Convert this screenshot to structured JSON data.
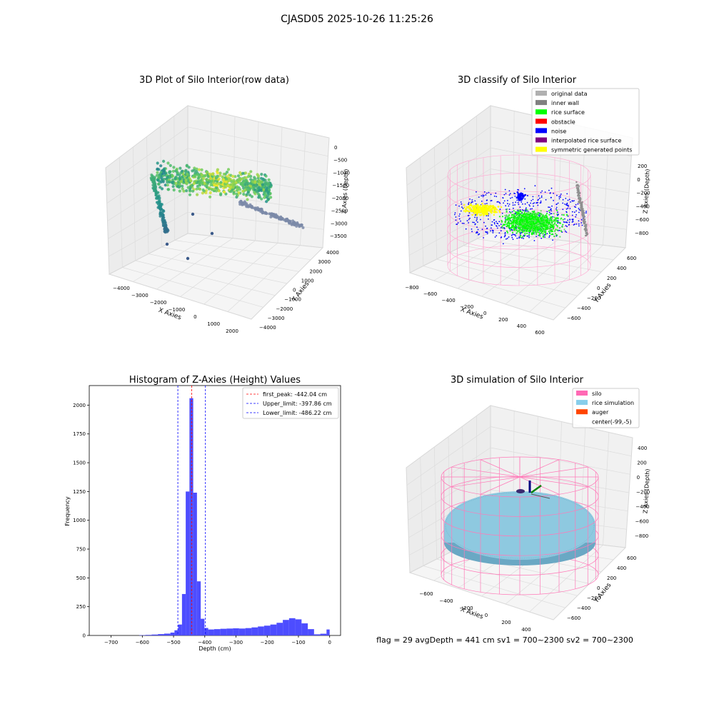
{
  "suptitle": "CJASD05 2025-10-26 11:25:26",
  "footer": "flag = 29  avgDepth = 441 cm  sv1 = 700~2300  sv2 = 700~2300",
  "chart_data": [
    {
      "type": "scatter",
      "projection": "3d",
      "title": "3D Plot of Silo Interior(row data)",
      "xlabel": "X Axies",
      "ylabel": "Y Axies",
      "zlabel": "Z Axies (Depth)",
      "xticks": [
        "−4000",
        "−3000",
        "−2000",
        "−1000",
        "0",
        "1000",
        "2000"
      ],
      "yticks": [
        "−4000",
        "−3000",
        "−2000",
        "−1000",
        "0",
        "1000",
        "2000",
        "3000",
        "4000"
      ],
      "zticks": [
        "0",
        "−500",
        "−1000",
        "−1500",
        "−2000",
        "−2500",
        "−3000",
        "−3500"
      ],
      "colormap": "viridis"
    },
    {
      "type": "scatter",
      "projection": "3d",
      "title": "3D classify of Silo Interior",
      "xlabel": "X Axies",
      "ylabel": "Y Axies",
      "zlabel": "Z Axies (Depth)",
      "xticks": [
        "−800",
        "−600",
        "−400",
        "−200",
        "0",
        "200",
        "400",
        "600"
      ],
      "yticks": [
        "−600",
        "−400",
        "−200",
        "0",
        "200",
        "400",
        "600"
      ],
      "zticks": [
        "200",
        "0",
        "−200",
        "−400",
        "−600",
        "−800"
      ],
      "legend_position": "top-right",
      "legend": [
        {
          "label": "original data",
          "color": "#b0b0b0"
        },
        {
          "label": "inner wall",
          "color": "#808080"
        },
        {
          "label": "rice surface",
          "color": "#00ff00"
        },
        {
          "label": "obstacle",
          "color": "#ff0000"
        },
        {
          "label": "noise",
          "color": "#0000ff"
        },
        {
          "label": "interpolated rice surface",
          "color": "#800080"
        },
        {
          "label": "symmetric generated points",
          "color": "#ffff00"
        }
      ]
    },
    {
      "type": "bar",
      "title": "Histogram of Z-Axies (Height) Values",
      "xlabel": "Depth (cm)",
      "ylabel": "Frequency",
      "xlim": [
        -770,
        35
      ],
      "ylim": [
        0,
        2170
      ],
      "xticks": [
        -700,
        -600,
        -500,
        -400,
        -300,
        -200,
        -100,
        0
      ],
      "yticks": [
        0,
        250,
        500,
        750,
        1000,
        1250,
        1500,
        1750,
        2000
      ],
      "bar_color": "#4d4dff",
      "bins": [
        [
          -610,
          -590,
          3
        ],
        [
          -590,
          -570,
          5
        ],
        [
          -570,
          -550,
          8
        ],
        [
          -550,
          -530,
          12
        ],
        [
          -530,
          -510,
          16
        ],
        [
          -510,
          -497,
          25
        ],
        [
          -497,
          -485,
          45
        ],
        [
          -485,
          -473,
          95
        ],
        [
          -473,
          -461,
          360
        ],
        [
          -461,
          -449,
          1250
        ],
        [
          -449,
          -437,
          2060
        ],
        [
          -437,
          -425,
          1240
        ],
        [
          -425,
          -413,
          470
        ],
        [
          -413,
          -401,
          145
        ],
        [
          -401,
          -389,
          65
        ],
        [
          -389,
          -370,
          52
        ],
        [
          -370,
          -350,
          55
        ],
        [
          -350,
          -330,
          58
        ],
        [
          -330,
          -310,
          60
        ],
        [
          -310,
          -290,
          62
        ],
        [
          -290,
          -270,
          60
        ],
        [
          -270,
          -250,
          64
        ],
        [
          -250,
          -230,
          70
        ],
        [
          -230,
          -210,
          78
        ],
        [
          -210,
          -190,
          85
        ],
        [
          -190,
          -170,
          95
        ],
        [
          -170,
          -150,
          110
        ],
        [
          -150,
          -130,
          135
        ],
        [
          -130,
          -110,
          150
        ],
        [
          -110,
          -90,
          140
        ],
        [
          -90,
          -70,
          105
        ],
        [
          -70,
          -50,
          55
        ],
        [
          -50,
          -30,
          10
        ],
        [
          -30,
          -10,
          15
        ],
        [
          -10,
          0,
          52
        ]
      ],
      "lines": [
        {
          "label": "first_peak: -442.04 cm",
          "x": -442.04,
          "color": "#ff0000"
        },
        {
          "label": "Upper_limit: -397.86 cm",
          "x": -397.86,
          "color": "#0000ff"
        },
        {
          "label": "Lower_limit: -486.22 cm",
          "x": -486.22,
          "color": "#0000ff"
        }
      ],
      "legend_position": "top-right"
    },
    {
      "type": "scatter",
      "projection": "3d",
      "title": "3D simulation of Silo Interior",
      "xlabel": "X Axies",
      "ylabel": "Y Axies",
      "zlabel": "Z Axies (Depth)",
      "xticks": [
        "−600",
        "−400",
        "−200",
        "0",
        "200",
        "400"
      ],
      "yticks": [
        "−600",
        "−400",
        "−200",
        "0",
        "200",
        "400",
        "600"
      ],
      "zticks": [
        "400",
        "200",
        "0",
        "−200",
        "−400",
        "−600",
        "−800"
      ],
      "legend_position": "top-right",
      "legend": [
        {
          "label": "silo",
          "color": "#ff69b4"
        },
        {
          "label": "rice simulation",
          "color": "#87ceeb"
        },
        {
          "label": "auger",
          "color": "#ff4500"
        },
        {
          "label": "center(-99,-5)",
          "color": "#ffffff"
        }
      ]
    }
  ]
}
